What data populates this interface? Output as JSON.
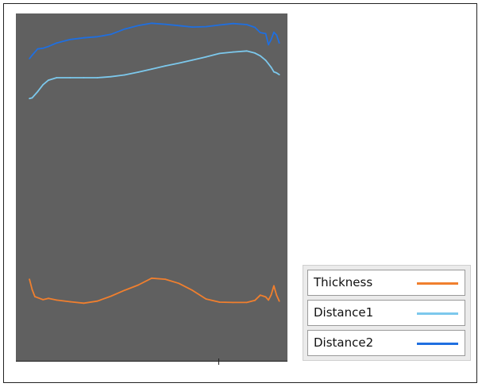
{
  "chart_data": {
    "type": "line",
    "title": "",
    "xlabel": "",
    "ylabel": "",
    "xlim": [
      0,
      100
    ],
    "ylim": [
      0,
      100
    ],
    "grid": false,
    "legend_position": "bottom-right",
    "series": [
      {
        "name": "Thickness",
        "color": "#f07f2e",
        "x": [
          5,
          6,
          7,
          8,
          10,
          12,
          15,
          20,
          25,
          30,
          35,
          40,
          45,
          50,
          55,
          60,
          65,
          70,
          75,
          80,
          85,
          88,
          90,
          92,
          93,
          94,
          95,
          96,
          97
        ],
        "y": [
          23.5,
          20.5,
          18.5,
          18.2,
          17.6,
          18,
          17.5,
          17,
          16.6,
          17.2,
          18.6,
          20.3,
          21.8,
          23.8,
          23.5,
          22.3,
          20.3,
          17.8,
          16.9,
          16.8,
          16.8,
          17.4,
          18.9,
          18.4,
          17.5,
          19,
          21.6,
          18.9,
          17.2
        ]
      },
      {
        "name": "Distance1",
        "color": "#7cc8ec",
        "x": [
          5,
          6,
          8,
          10,
          12,
          15,
          20,
          25,
          30,
          35,
          40,
          45,
          50,
          55,
          60,
          65,
          70,
          75,
          80,
          85,
          88,
          90,
          92,
          93,
          94,
          95,
          96,
          97
        ],
        "y": [
          75.5,
          75.7,
          77.5,
          79.5,
          80.8,
          81.5,
          81.5,
          81.5,
          81.5,
          81.8,
          82.3,
          83.1,
          84,
          84.9,
          85.7,
          86.6,
          87.5,
          88.5,
          88.9,
          89.2,
          88.6,
          87.8,
          86.5,
          85.5,
          84.5,
          83.2,
          82.9,
          82.4
        ]
      },
      {
        "name": "Distance2",
        "color": "#1f6fe0",
        "x": [
          5,
          6,
          8,
          10,
          12,
          15,
          20,
          25,
          30,
          35,
          40,
          45,
          50,
          55,
          60,
          65,
          70,
          75,
          80,
          85,
          88,
          90,
          92,
          93,
          94,
          95,
          96,
          97
        ],
        "y": [
          87,
          88,
          89.8,
          90,
          90.5,
          91.5,
          92.5,
          93,
          93.3,
          94,
          95.5,
          96.5,
          97.2,
          96.9,
          96.5,
          96.1,
          96.2,
          96.7,
          97.1,
          96.8,
          96,
          94.5,
          94.2,
          91,
          92.5,
          94.6,
          93.8,
          91.5
        ]
      }
    ]
  }
}
